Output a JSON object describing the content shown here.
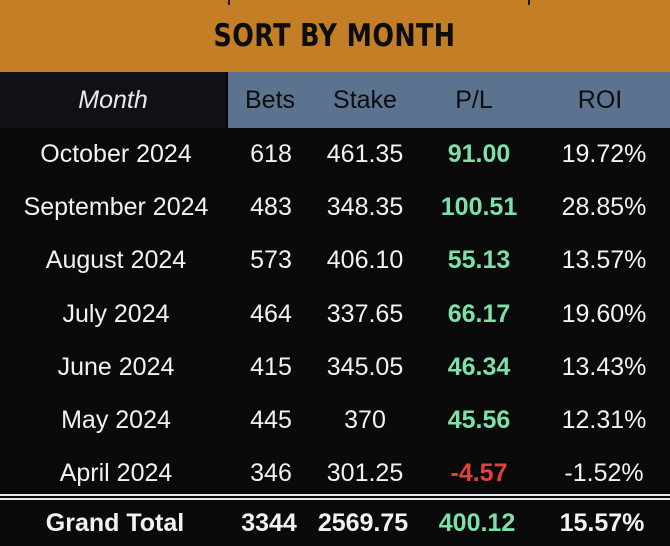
{
  "title": "SORT BY MONTH",
  "columns": {
    "month": "Month",
    "bets": "Bets",
    "stake": "Stake",
    "pl": "P/L",
    "roi": "ROI"
  },
  "rows": [
    {
      "month": "October 2024",
      "bets": "618",
      "stake": "461.35",
      "pl": "91.00",
      "roi": "19.72%",
      "pl_sign": "positive"
    },
    {
      "month": "September 2024",
      "bets": "483",
      "stake": "348.35",
      "pl": "100.51",
      "roi": "28.85%",
      "pl_sign": "positive"
    },
    {
      "month": "August 2024",
      "bets": "573",
      "stake": "406.10",
      "pl": "55.13",
      "roi": "13.57%",
      "pl_sign": "positive"
    },
    {
      "month": "July 2024",
      "bets": "464",
      "stake": "337.65",
      "pl": "66.17",
      "roi": "19.60%",
      "pl_sign": "positive"
    },
    {
      "month": "June 2024",
      "bets": "415",
      "stake": "345.05",
      "pl": "46.34",
      "roi": "13.43%",
      "pl_sign": "positive"
    },
    {
      "month": "May 2024",
      "bets": "445",
      "stake": "370",
      "pl": "45.56",
      "roi": "12.31%",
      "pl_sign": "positive"
    },
    {
      "month": "April 2024",
      "bets": "346",
      "stake": "301.25",
      "pl": "-4.57",
      "roi": "-1.52%",
      "pl_sign": "negative"
    }
  ],
  "total": {
    "label": "Grand Total",
    "bets": "3344",
    "stake": "2569.75",
    "pl": "400.12",
    "roi": "15.57%"
  },
  "colors": {
    "banner": "#c47f26",
    "header_cols": "#5c7390",
    "positive": "#7de0a8",
    "negative": "#e0413a"
  }
}
